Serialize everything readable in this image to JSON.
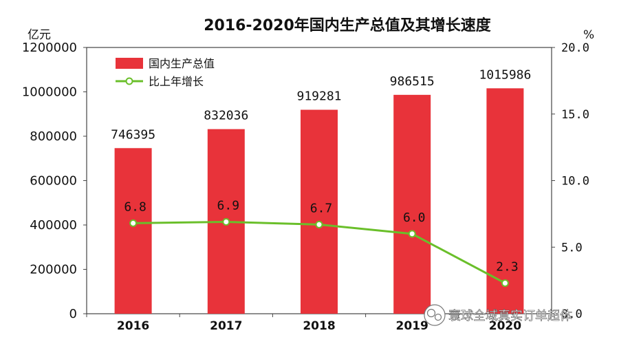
{
  "chart_data": {
    "type": "bar",
    "title": "2016-2020年国内生产总值及其增长速度",
    "categories": [
      "2016",
      "2017",
      "2018",
      "2019",
      "2020"
    ],
    "y_left": {
      "unit": "亿元",
      "ylim": [
        0,
        1200000
      ],
      "ticks": [
        "0",
        "200000",
        "400000",
        "600000",
        "800000",
        "1000000",
        "1200000"
      ]
    },
    "y_right": {
      "unit": "%",
      "ylim": [
        0,
        20
      ],
      "ticks": [
        "0.0",
        "5.0",
        "10.0",
        "15.0",
        "20.0"
      ]
    },
    "series": [
      {
        "name": "国内生产总值",
        "type": "bar",
        "axis": "left",
        "color": "#e8333a",
        "values": [
          746395,
          832036,
          919281,
          986515,
          1015986
        ],
        "labels": [
          "746395",
          "832036",
          "919281",
          "986515",
          "1015986"
        ]
      },
      {
        "name": "比上年增长",
        "type": "line",
        "axis": "right",
        "color": "#6abf2a",
        "values": [
          6.8,
          6.9,
          6.7,
          6.0,
          2.3
        ],
        "labels": [
          "6.8",
          "6.9",
          "6.7",
          "6.0",
          "2.3"
        ]
      }
    ],
    "legend": "top-left",
    "grid": false
  },
  "watermark": {
    "text": "寰球全域真实订单超体"
  }
}
